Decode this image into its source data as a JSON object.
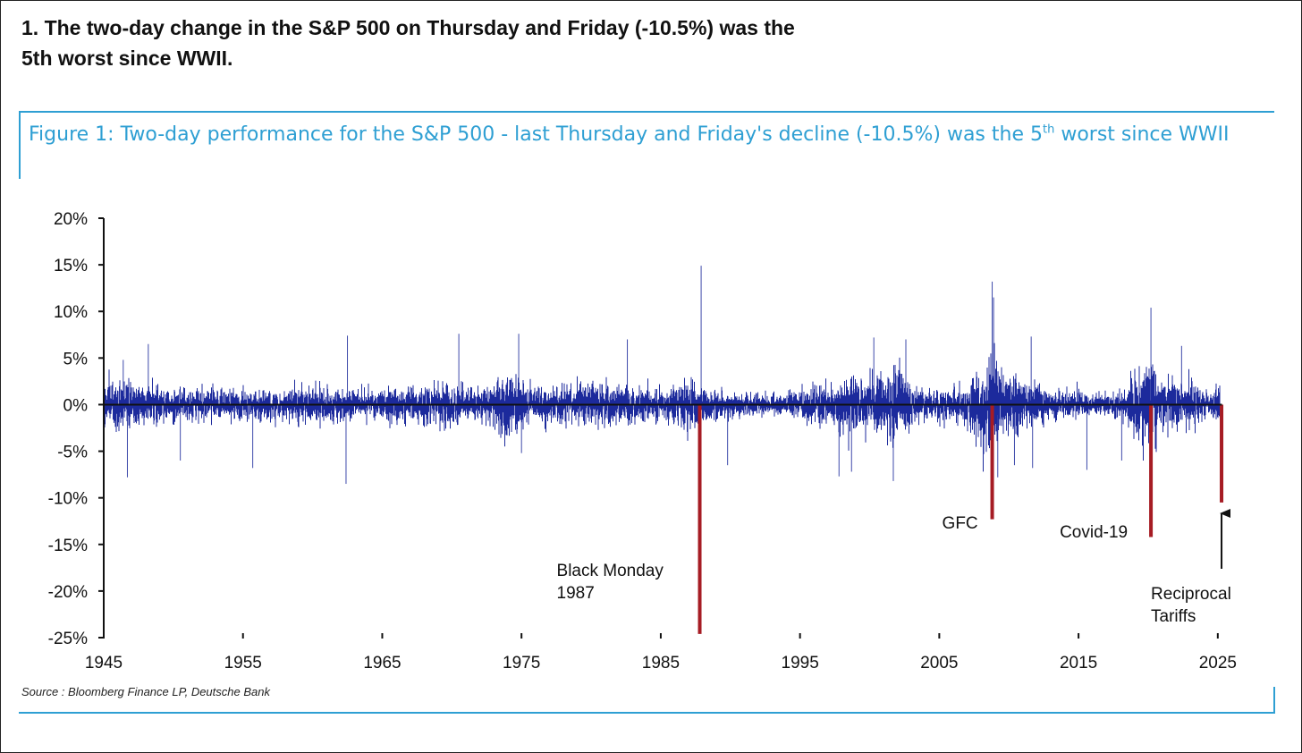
{
  "headline": {
    "line1": "1. The two-day change in the S&P 500 on Thursday and Friday (-10.5%) was the",
    "line2": "5th worst since WWII."
  },
  "figure": {
    "title_pre": "Figure 1: Two-day performance for the S&P 500 - last Thursday and Friday's decline (-10.5%) was the 5",
    "title_sup": "th",
    "title_post": " worst since WWII",
    "source": "Source : Bloomberg Finance LP, Deutsche Bank"
  },
  "colors": {
    "accent": "#2e9fd3",
    "series": "#1c2a9c",
    "highlight": "#a61c24",
    "axis": "#111111"
  },
  "chart_data": {
    "type": "bar",
    "title": "",
    "xlabel": "",
    "ylabel": "",
    "xlim": [
      1945,
      2025.3
    ],
    "ylim": [
      -25,
      20
    ],
    "x_ticks": [
      1945,
      1955,
      1965,
      1975,
      1985,
      1995,
      2005,
      2015,
      2025
    ],
    "y_ticks": [
      20,
      15,
      10,
      5,
      0,
      -5,
      -10,
      -15,
      -20,
      -25
    ],
    "y_tick_labels": [
      "20%",
      "15%",
      "10%",
      "5%",
      "0%",
      "-5%",
      "-10%",
      "-15%",
      "-20%",
      "-25%"
    ],
    "x_tick_labels": [
      "1945",
      "1955",
      "1965",
      "1975",
      "1985",
      "1995",
      "2005",
      "2015",
      "2025"
    ],
    "grid": false,
    "series": [
      {
        "values_note": "Two-day % change in the S&P 500, approximate volatility envelope read from chart",
        "volatility_profile": [
          [
            1945,
            1.6
          ],
          [
            1947,
            1.3
          ],
          [
            1950,
            1.0
          ],
          [
            1955,
            0.9
          ],
          [
            1962,
            1.1
          ],
          [
            1963,
            0.8
          ],
          [
            1966,
            1.0
          ],
          [
            1970,
            1.4
          ],
          [
            1972,
            0.8
          ],
          [
            1974,
            2.0
          ],
          [
            1976,
            1.0
          ],
          [
            1980,
            1.3
          ],
          [
            1985,
            1.0
          ],
          [
            1987,
            1.6
          ],
          [
            1988,
            1.0
          ],
          [
            1993,
            0.6
          ],
          [
            1997,
            1.2
          ],
          [
            1999,
            1.6
          ],
          [
            2002,
            2.0
          ],
          [
            2004,
            0.8
          ],
          [
            2007,
            1.2
          ],
          [
            2008.8,
            3.8
          ],
          [
            2009.5,
            1.8
          ],
          [
            2011,
            1.8
          ],
          [
            2013,
            0.9
          ],
          [
            2017,
            0.6
          ],
          [
            2018.5,
            1.2
          ],
          [
            2020.2,
            3.2
          ],
          [
            2020.8,
            1.4
          ],
          [
            2022,
            1.8
          ],
          [
            2024,
            0.8
          ],
          [
            2025.3,
            1.4
          ]
        ],
        "spikes": [
          {
            "x": 1946.4,
            "y": 4.8
          },
          {
            "x": 1946.7,
            "y": -7.8
          },
          {
            "x": 1948.2,
            "y": 6.5
          },
          {
            "x": 1950.5,
            "y": -6.0
          },
          {
            "x": 1955.7,
            "y": -6.8
          },
          {
            "x": 1962.4,
            "y": -8.5
          },
          {
            "x": 1962.5,
            "y": 7.4
          },
          {
            "x": 1970.5,
            "y": 7.6
          },
          {
            "x": 1974.8,
            "y": 7.6
          },
          {
            "x": 1975.0,
            "y": -5.2
          },
          {
            "x": 1982.6,
            "y": 7.0
          },
          {
            "x": 1987.9,
            "y": 14.9
          },
          {
            "x": 1989.8,
            "y": -6.5
          },
          {
            "x": 1997.8,
            "y": -7.7
          },
          {
            "x": 1998.7,
            "y": -7.2
          },
          {
            "x": 2000.3,
            "y": 7.2
          },
          {
            "x": 2001.7,
            "y": -8.2
          },
          {
            "x": 2002.6,
            "y": 7.0
          },
          {
            "x": 2008.8,
            "y": 13.2
          },
          {
            "x": 2008.9,
            "y": 11.5
          },
          {
            "x": 2009.2,
            "y": -7.8
          },
          {
            "x": 2010.4,
            "y": -6.5
          },
          {
            "x": 2011.6,
            "y": 7.3
          },
          {
            "x": 2011.7,
            "y": -6.8
          },
          {
            "x": 2015.6,
            "y": -7.0
          },
          {
            "x": 2018.1,
            "y": -6.0
          },
          {
            "x": 2020.2,
            "y": 10.4
          },
          {
            "x": 2020.25,
            "y": -12.0
          },
          {
            "x": 2022.4,
            "y": 6.3
          }
        ]
      },
      {
        "name": "highlighted declines",
        "points": [
          {
            "x": 1987.8,
            "y": -24.6
          },
          {
            "x": 2008.8,
            "y": -12.3
          },
          {
            "x": 2020.2,
            "y": -14.2
          },
          {
            "x": 2025.27,
            "y": -10.5
          }
        ]
      }
    ],
    "annotations": [
      {
        "lines": [
          "Black Monday",
          "1987"
        ],
        "x": 1987.8
      },
      {
        "lines": [
          "GFC"
        ],
        "x": 2008.8
      },
      {
        "lines": [
          "Covid-19"
        ],
        "x": 2020.2
      },
      {
        "lines": [
          "Reciprocal",
          "Tariffs"
        ],
        "x": 2025.27,
        "arrow": true
      }
    ]
  }
}
